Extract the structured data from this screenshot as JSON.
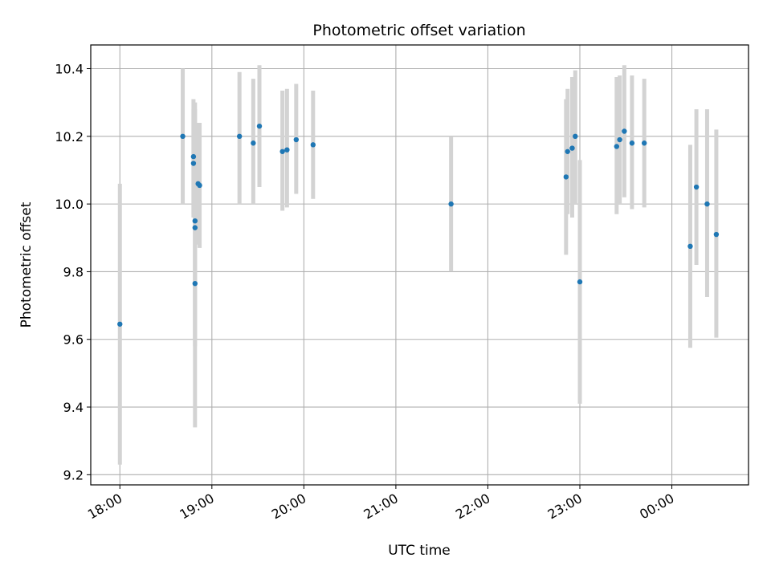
{
  "chart_data": {
    "type": "scatter",
    "title": "Photometric offset variation",
    "xlabel": "UTC time",
    "ylabel": "Photometric offset",
    "xlim": [
      "17:41",
      "00:50"
    ],
    "ylim": [
      9.17,
      10.47
    ],
    "x_ticks": [
      "18:00",
      "19:00",
      "20:00",
      "21:00",
      "22:00",
      "23:00",
      "00:00"
    ],
    "y_ticks": [
      9.2,
      9.4,
      9.6,
      9.8,
      10.0,
      10.2,
      10.4
    ],
    "grid": true,
    "colors": {
      "point": "#1f77b4",
      "errorbar": "#d3d3d3",
      "grid": "#b0b0b0"
    },
    "points": [
      {
        "x": "18:00",
        "y": 9.645,
        "low": 9.23,
        "high": 10.06
      },
      {
        "x": "18:41",
        "y": 10.2,
        "low": 10.0,
        "high": 10.4
      },
      {
        "x": "18:48",
        "y": 10.14,
        "low": 9.97,
        "high": 10.31
      },
      {
        "x": "18:48",
        "y": 10.12,
        "low": 9.96,
        "high": 10.28
      },
      {
        "x": "18:49",
        "y": 9.95,
        "low": 9.6,
        "high": 10.3
      },
      {
        "x": "18:49",
        "y": 9.93,
        "low": 9.58,
        "high": 10.28
      },
      {
        "x": "18:49",
        "y": 9.765,
        "low": 9.34,
        "high": 10.19
      },
      {
        "x": "18:51",
        "y": 10.06,
        "low": 9.88,
        "high": 10.24
      },
      {
        "x": "18:52",
        "y": 10.055,
        "low": 9.87,
        "high": 10.24
      },
      {
        "x": "19:18",
        "y": 10.2,
        "low": 10.0,
        "high": 10.39
      },
      {
        "x": "19:27",
        "y": 10.18,
        "low": 10.0,
        "high": 10.37
      },
      {
        "x": "19:31",
        "y": 10.23,
        "low": 10.05,
        "high": 10.41
      },
      {
        "x": "19:46",
        "y": 10.155,
        "low": 9.98,
        "high": 10.335
      },
      {
        "x": "19:49",
        "y": 10.16,
        "low": 9.99,
        "high": 10.34
      },
      {
        "x": "19:55",
        "y": 10.19,
        "low": 10.03,
        "high": 10.355
      },
      {
        "x": "20:06",
        "y": 10.175,
        "low": 10.015,
        "high": 10.335
      },
      {
        "x": "21:36",
        "y": 10.0,
        "low": 9.8,
        "high": 10.2
      },
      {
        "x": "22:51",
        "y": 10.08,
        "low": 9.85,
        "high": 10.31
      },
      {
        "x": "22:52",
        "y": 10.155,
        "low": 9.97,
        "high": 10.34
      },
      {
        "x": "22:55",
        "y": 10.165,
        "low": 9.96,
        "high": 10.375
      },
      {
        "x": "22:57",
        "y": 10.2,
        "low": 10.0,
        "high": 10.395
      },
      {
        "x": "23:00",
        "y": 9.77,
        "low": 9.41,
        "high": 10.13
      },
      {
        "x": "23:24",
        "y": 10.17,
        "low": 9.97,
        "high": 10.375
      },
      {
        "x": "23:26",
        "y": 10.19,
        "low": 10.0,
        "high": 10.38
      },
      {
        "x": "23:29",
        "y": 10.215,
        "low": 10.02,
        "high": 10.41
      },
      {
        "x": "23:34",
        "y": 10.18,
        "low": 9.985,
        "high": 10.38
      },
      {
        "x": "23:42",
        "y": 10.18,
        "low": 9.99,
        "high": 10.37
      },
      {
        "x": "00:12",
        "y": 9.875,
        "low": 9.575,
        "high": 10.175
      },
      {
        "x": "00:16",
        "y": 10.05,
        "low": 9.82,
        "high": 10.28
      },
      {
        "x": "00:23",
        "y": 10.0,
        "low": 9.725,
        "high": 10.28
      },
      {
        "x": "00:29",
        "y": 9.91,
        "low": 9.605,
        "high": 10.22
      }
    ]
  }
}
